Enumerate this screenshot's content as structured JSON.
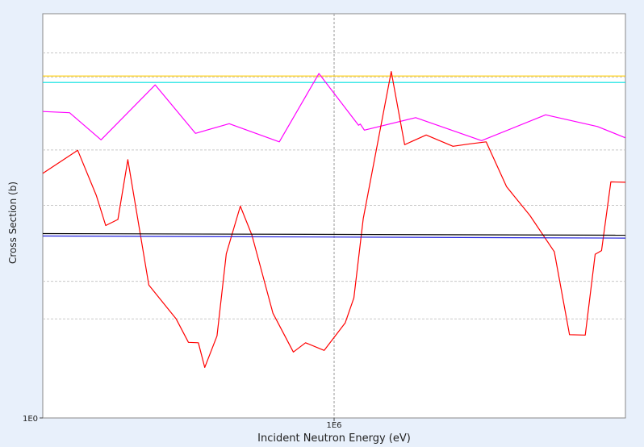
{
  "chart_data": {
    "type": "line",
    "title": "",
    "xlabel": "Incident Neutron Energy (eV)",
    "ylabel": "Cross Section (b)",
    "x_ticks": [
      {
        "label": "1E6",
        "x": 50
      }
    ],
    "y_ticks": [
      {
        "label": "1E0",
        "y": 0
      }
    ],
    "grid": true,
    "xlim": [
      0,
      100
    ],
    "ylim": [
      0,
      100
    ],
    "y_grid_values": [
      24.5,
      33.8,
      52.6,
      66.3,
      84.3,
      90.3
    ],
    "series": [
      {
        "color": "#ffcc00",
        "x": [
          0,
          100
        ],
        "y": [
          84.6,
          84.6
        ]
      },
      {
        "color": "#00e0e0",
        "x": [
          0,
          100
        ],
        "y": [
          83.0,
          83.0
        ]
      },
      {
        "color": "#ff00ff",
        "x": [
          0,
          4.6,
          10.0,
          19.3,
          26.2,
          32.0,
          40.6,
          47.4,
          54.2,
          54.5,
          55.2,
          64.0,
          75.3,
          86.3,
          95.2,
          100
        ],
        "y": [
          75.8,
          75.5,
          68.8,
          82.4,
          70.4,
          72.8,
          68.3,
          85.2,
          72.4,
          72.7,
          71.2,
          74.3,
          68.6,
          75.0,
          72.1,
          69.3
        ]
      },
      {
        "color": "#ff0000",
        "x": [
          0,
          6.0,
          9.2,
          10.8,
          12.9,
          14.6,
          18.2,
          22.9,
          25.0,
          26.7,
          27.8,
          29.9,
          31.5,
          33.9,
          35.9,
          39.5,
          43.0,
          45.1,
          48.3,
          51.9,
          53.4,
          55.0,
          59.8,
          62.1,
          65.8,
          70.4,
          73.3,
          76.1,
          79.6,
          83.6,
          87.8,
          90.4,
          93.1,
          94.8,
          95.9,
          97.5,
          100
        ],
        "y": [
          60.5,
          66.2,
          55.0,
          47.6,
          49.1,
          63.9,
          32.9,
          24.5,
          18.7,
          18.6,
          12.5,
          20.3,
          40.6,
          52.4,
          45.2,
          25.9,
          16.3,
          18.6,
          16.7,
          23.5,
          29.7,
          49.3,
          85.7,
          67.6,
          70.0,
          67.2,
          67.8,
          68.3,
          57.2,
          50.1,
          41.1,
          20.6,
          20.5,
          40.5,
          41.4,
          58.4,
          58.3
        ]
      },
      {
        "color": "#000000",
        "x": [
          0,
          100
        ],
        "y": [
          45.6,
          45.2
        ]
      },
      {
        "color": "#2222dd",
        "x": [
          0,
          100
        ],
        "y": [
          45.0,
          44.5
        ]
      }
    ]
  }
}
